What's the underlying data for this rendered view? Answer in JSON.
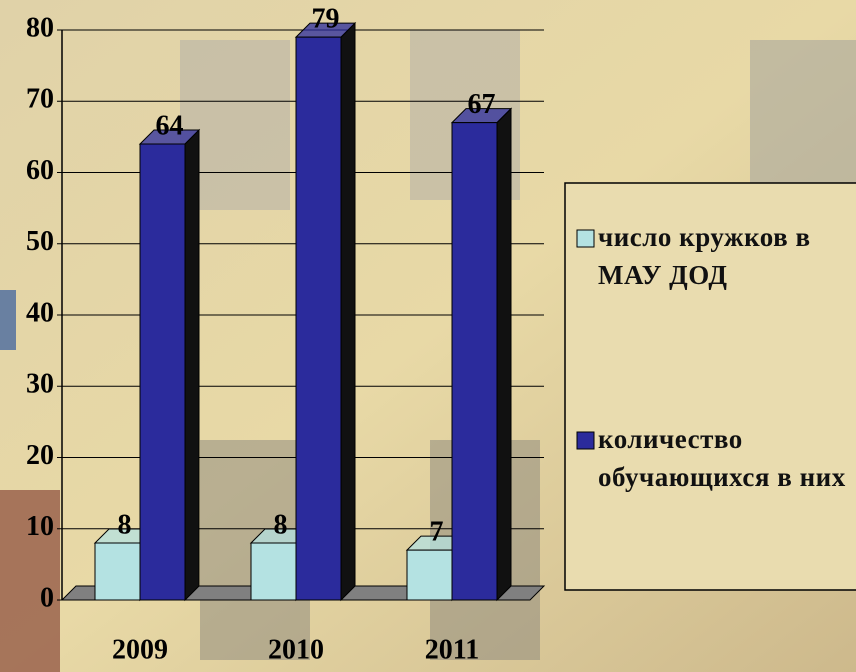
{
  "chart_data": {
    "type": "bar3d",
    "categories": [
      "2009",
      "2010",
      "2011"
    ],
    "series": [
      {
        "name": "число кружков в МАУ ДОД",
        "color": "#b4e2e2",
        "values": [
          8,
          8,
          7
        ]
      },
      {
        "name": "количество обучающихся в них",
        "color": "#2b2b9c",
        "values": [
          64,
          79,
          67
        ]
      }
    ],
    "ylim": [
      0,
      80
    ],
    "yticks": [
      0,
      10,
      20,
      30,
      40,
      50,
      60,
      70,
      80
    ],
    "grid": true,
    "legend": "right"
  }
}
